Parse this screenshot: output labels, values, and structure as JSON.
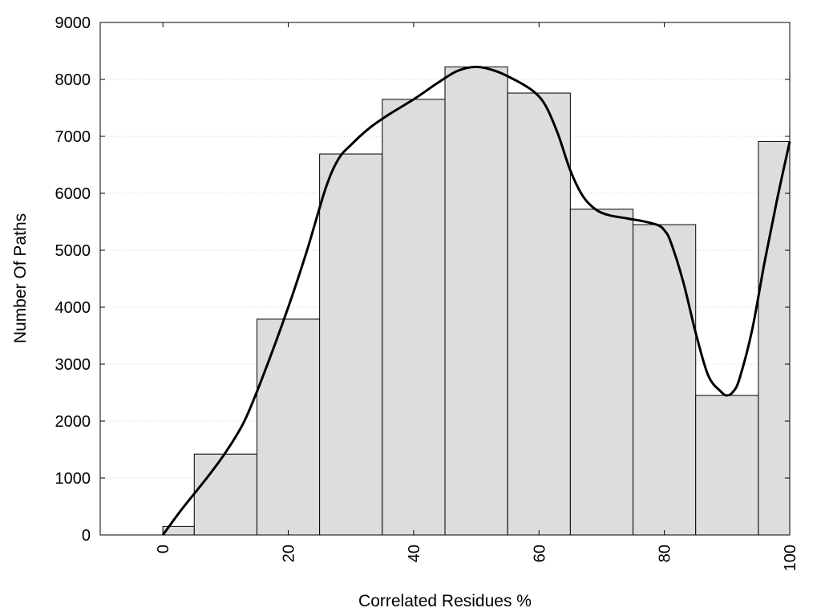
{
  "chart_data": {
    "type": "bar",
    "title": "",
    "xlabel": "Correlated Residues %",
    "ylabel": "Number Of Paths",
    "xlim": [
      -10,
      100
    ],
    "ylim": [
      0,
      9000
    ],
    "x_ticks": [
      0,
      20,
      40,
      60,
      80,
      100
    ],
    "y_ticks": [
      0,
      1000,
      2000,
      3000,
      4000,
      5000,
      6000,
      7000,
      8000,
      9000
    ],
    "grid": "horizontal dotted",
    "legend": "none",
    "bar_color": "#dddddd",
    "bars": [
      {
        "x0": 0,
        "x1": 5,
        "value": 150
      },
      {
        "x0": 5,
        "x1": 15,
        "value": 1420
      },
      {
        "x0": 15,
        "x1": 25,
        "value": 3790
      },
      {
        "x0": 25,
        "x1": 35,
        "value": 6690
      },
      {
        "x0": 35,
        "x1": 45,
        "value": 7650
      },
      {
        "x0": 45,
        "x1": 55,
        "value": 8220
      },
      {
        "x0": 55,
        "x1": 65,
        "value": 7760
      },
      {
        "x0": 65,
        "x1": 75,
        "value": 5720
      },
      {
        "x0": 75,
        "x1": 85,
        "value": 5450
      },
      {
        "x0": 85,
        "x1": 95,
        "value": 2450
      },
      {
        "x0": 95,
        "x1": 100,
        "value": 6910
      }
    ],
    "curve": {
      "x": [
        0,
        3,
        7,
        10,
        13,
        16,
        20,
        23,
        26,
        28,
        30,
        33,
        36,
        40,
        44,
        47,
        50,
        53,
        56,
        59,
        61,
        63,
        65,
        67,
        69,
        71,
        74,
        77,
        79,
        80,
        81,
        83,
        85,
        87,
        89,
        90,
        91,
        92,
        94,
        96,
        98,
        100
      ],
      "y": [
        0,
        450,
        1000,
        1450,
        2000,
        2800,
        4000,
        5000,
        6100,
        6600,
        6850,
        7150,
        7380,
        7650,
        7950,
        8150,
        8220,
        8150,
        8000,
        7800,
        7550,
        7050,
        6400,
        5950,
        5720,
        5620,
        5560,
        5500,
        5440,
        5350,
        5150,
        4450,
        3550,
        2800,
        2520,
        2450,
        2520,
        2750,
        3600,
        4800,
        5900,
        6910
      ]
    }
  }
}
